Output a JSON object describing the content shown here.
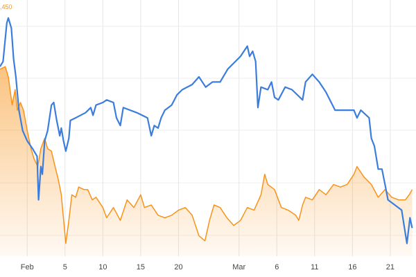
{
  "chart_data": {
    "type": "line",
    "annotation": ",450",
    "annotation_color": "#f7931a",
    "xlim": [
      -3.6,
      51.4
    ],
    "ylim": [
      0,
      100
    ],
    "xticks": [
      {
        "value": 0,
        "label": "Feb"
      },
      5,
      10,
      15,
      20,
      {
        "value": 28,
        "label": "Mar"
      },
      {
        "value": 33,
        "label": "6"
      },
      {
        "value": 38,
        "label": "11"
      },
      {
        "value": 43,
        "label": "16"
      },
      {
        "value": 48,
        "label": "21"
      }
    ],
    "grid": true,
    "series": [
      {
        "color": "#f7931a",
        "fill": true,
        "x": [
          -3.6,
          -2.9,
          -2.5,
          -2,
          -1.6,
          -1.3,
          -0.9,
          -0.5,
          0,
          0.5,
          0.9,
          1.4,
          1.8,
          2.3,
          2.7,
          3.2,
          3.6,
          4.1,
          4.5,
          5.1,
          5.5,
          5.9,
          6.4,
          6.8,
          7.5,
          8,
          8.6,
          9.1,
          10,
          10.5,
          11.4,
          12.3,
          13.2,
          14.1,
          15,
          15.5,
          16.4,
          17.3,
          18.2,
          19.1,
          20,
          20.9,
          21.8,
          22.7,
          23.5,
          24.1,
          24.7,
          25.5,
          26.4,
          27.3,
          28.2,
          29.1,
          30,
          30.9,
          31.4,
          31.8,
          32.7,
          33.6,
          34.5,
          35.5,
          35.9,
          36.4,
          36.8,
          37.7,
          38.6,
          39.5,
          40.5,
          41.4,
          42.3,
          43.2,
          43.6,
          44.5,
          45.5,
          46.4,
          47.3,
          48.2,
          49.1,
          50,
          50.5,
          50.9
        ],
        "values": [
          73,
          74,
          70,
          59,
          65,
          57,
          60,
          57,
          49,
          42,
          38,
          35,
          42,
          46,
          42,
          41,
          36,
          30,
          24,
          5,
          14,
          24,
          23,
          27,
          26,
          26,
          22,
          23,
          19,
          15,
          19,
          14,
          22,
          19,
          24,
          19,
          20,
          16,
          15,
          16,
          18,
          19,
          16,
          8,
          6,
          14,
          20,
          19,
          15,
          12,
          14,
          19,
          18,
          24,
          32,
          28,
          26,
          19,
          18,
          16,
          14,
          20,
          23,
          22,
          26,
          24,
          28,
          27,
          28,
          32,
          35,
          31,
          28,
          23,
          26,
          23,
          22,
          22,
          24,
          26
        ]
      },
      {
        "color": "#3b7ddd",
        "fill": false,
        "x": [
          -3.6,
          -3.2,
          -2.7,
          -2.5,
          -2.1,
          -1.8,
          -1.5,
          -1.1,
          -0.6,
          0,
          0.7,
          1.3,
          1.5,
          1.8,
          2,
          2.3,
          2.7,
          3.2,
          3.5,
          3.9,
          4.3,
          4.5,
          4.8,
          5.1,
          5.5,
          5.7,
          6.4,
          7.7,
          8.4,
          8.7,
          9.1,
          10,
          10.5,
          11.4,
          11.8,
          12.3,
          12.7,
          14.5,
          15.9,
          16.4,
          16.8,
          17.3,
          17.7,
          18.2,
          19.1,
          19.8,
          20.5,
          21.8,
          22.7,
          23.6,
          24.5,
          25.5,
          26.5,
          28.2,
          29.1,
          29.4,
          29.8,
          30.2,
          30.5,
          30.9,
          31.8,
          32.3,
          32.7,
          33.2,
          34.1,
          35,
          36.4,
          36.8,
          37.7,
          38.6,
          39.5,
          40.7,
          43.2,
          43.6,
          44.1,
          45.2,
          45.5,
          45.9,
          46.4,
          46.9,
          47.3,
          47.7,
          49.5,
          50.2,
          50.6,
          50.9
        ],
        "values": [
          74,
          76,
          91,
          93,
          89,
          77,
          70,
          57,
          49,
          45,
          42,
          39,
          22,
          35,
          32,
          45,
          49,
          59,
          60,
          53,
          47,
          50,
          45,
          41,
          46,
          53,
          54,
          56,
          58,
          55,
          59,
          60,
          61,
          60,
          54,
          51,
          58,
          56,
          54,
          47,
          51,
          50,
          54,
          57,
          59,
          63,
          65,
          67,
          70,
          66,
          68,
          68,
          73,
          78,
          82,
          78,
          80,
          76,
          58,
          66,
          65,
          68,
          62,
          61,
          66,
          65,
          61,
          68,
          71,
          68,
          64,
          57,
          57,
          54,
          57,
          54,
          46,
          43,
          34,
          34,
          28,
          22,
          18,
          5,
          15,
          11
        ]
      }
    ]
  }
}
